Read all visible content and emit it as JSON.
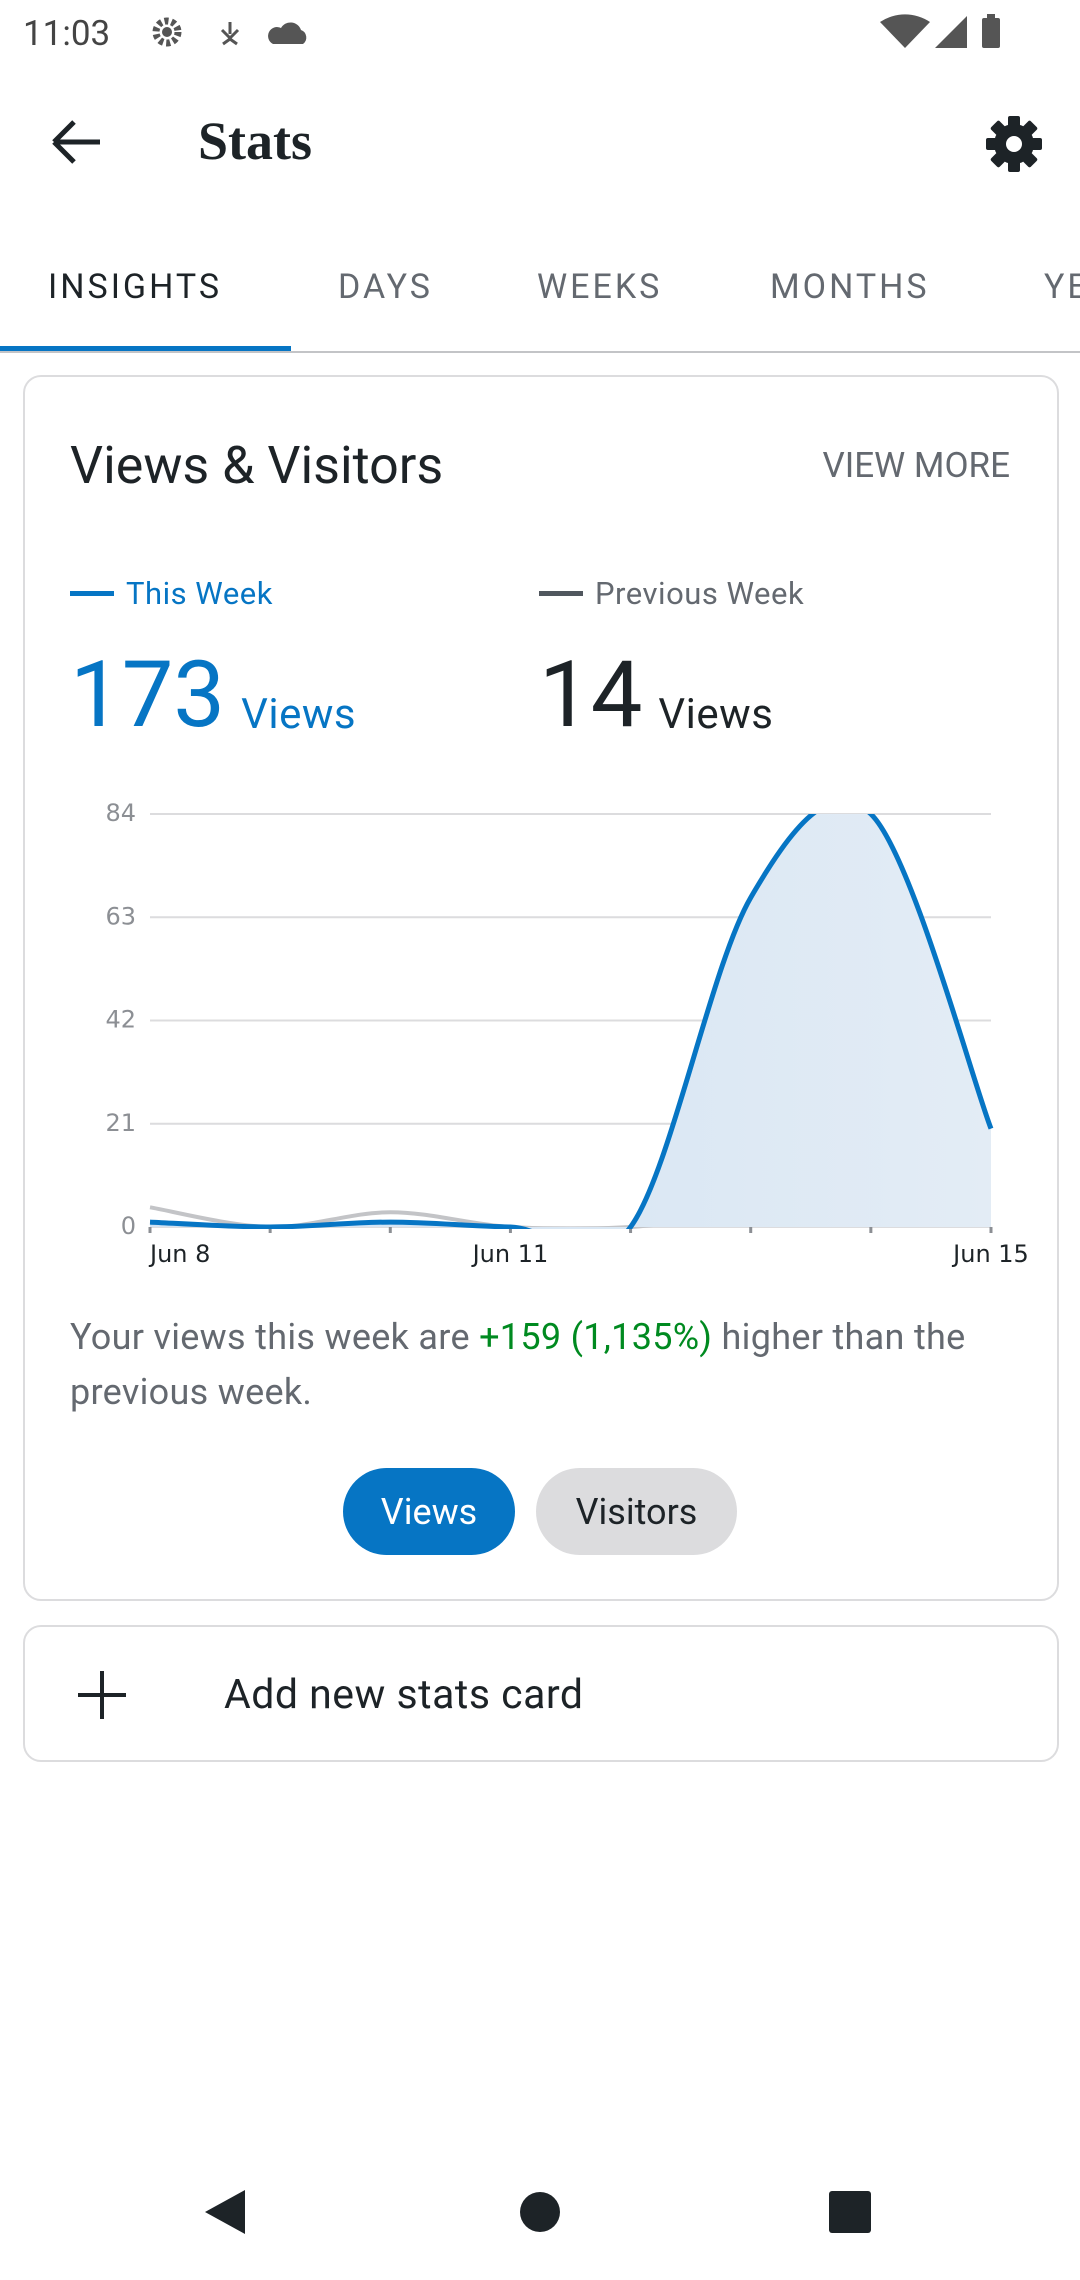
{
  "status_bar": {
    "time": "11:03"
  },
  "app_bar": {
    "title": "Stats"
  },
  "tabs": [
    "INSIGHTS",
    "DAYS",
    "WEEKS",
    "MONTHS",
    "YEARS"
  ],
  "card": {
    "title": "Views & Visitors",
    "action": "VIEW MORE",
    "legend": [
      {
        "value": 173,
        "unit": "Views"
      },
      {
        "value": 14,
        "unit": "Views"
      }
    ],
    "summary": {
      "before": "Your views this week are ",
      "change": "+159 (1,135%)",
      "after": " higher than the previous week."
    },
    "toggle": [
      "Views",
      "Visitors"
    ]
  },
  "chart_data": {
    "type": "line",
    "categories": [
      "Jun 8",
      null,
      null,
      "Jun 11",
      null,
      null,
      null,
      "Jun 15"
    ],
    "series": [
      {
        "name": "This Week",
        "color": "#0675c4",
        "values": [
          1,
          0,
          1,
          0,
          0,
          67,
          84,
          20
        ]
      },
      {
        "name": "Previous Week",
        "color": "#c3c4c7",
        "values": [
          4,
          0,
          3,
          0,
          0,
          3,
          4,
          null
        ]
      }
    ],
    "ylim": [
      0,
      84
    ],
    "yticks": [
      0,
      21,
      42,
      63,
      84
    ],
    "grid": true
  },
  "add_card": {
    "label": "Add new stats card"
  }
}
